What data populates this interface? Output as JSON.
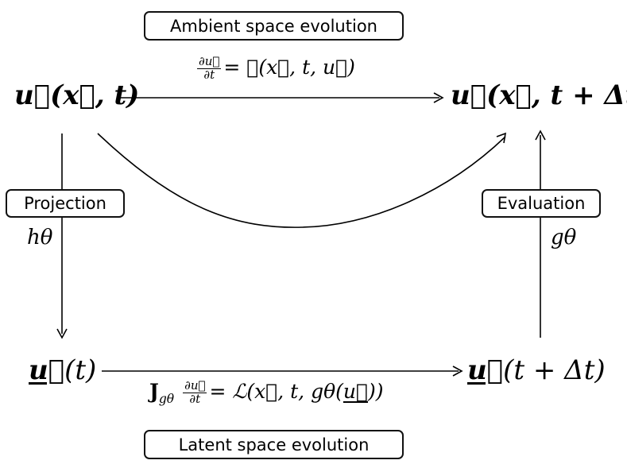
{
  "labels": {
    "ambient": "Ambient space evolution",
    "latent": "Latent space evolution",
    "projection": "Projection",
    "evaluation": "Evaluation"
  },
  "nodes": {
    "top_left": "u⃗(x⃗, t)",
    "top_right": "u⃗(x⃗, t + Δt)",
    "bottom_left_sym": "u⃗",
    "bottom_left_arg": "(t)",
    "bottom_right_sym": "u⃗",
    "bottom_right_arg": "(t + Δt)"
  },
  "equations": {
    "ambient_num": "∂u⃗",
    "ambient_den": "∂t",
    "ambient_rhs": "= ℒ(x⃗, t, u⃗)",
    "latent_J": "J",
    "latent_sub": "gθ",
    "latent_num": "∂u⃗",
    "latent_den": "∂t",
    "latent_rhs_a": "= ℒ(x⃗, t, gθ(",
    "latent_rhs_u": "u⃗",
    "latent_rhs_b": "))"
  },
  "maps": {
    "projection": "hθ",
    "evaluation": "gθ"
  }
}
